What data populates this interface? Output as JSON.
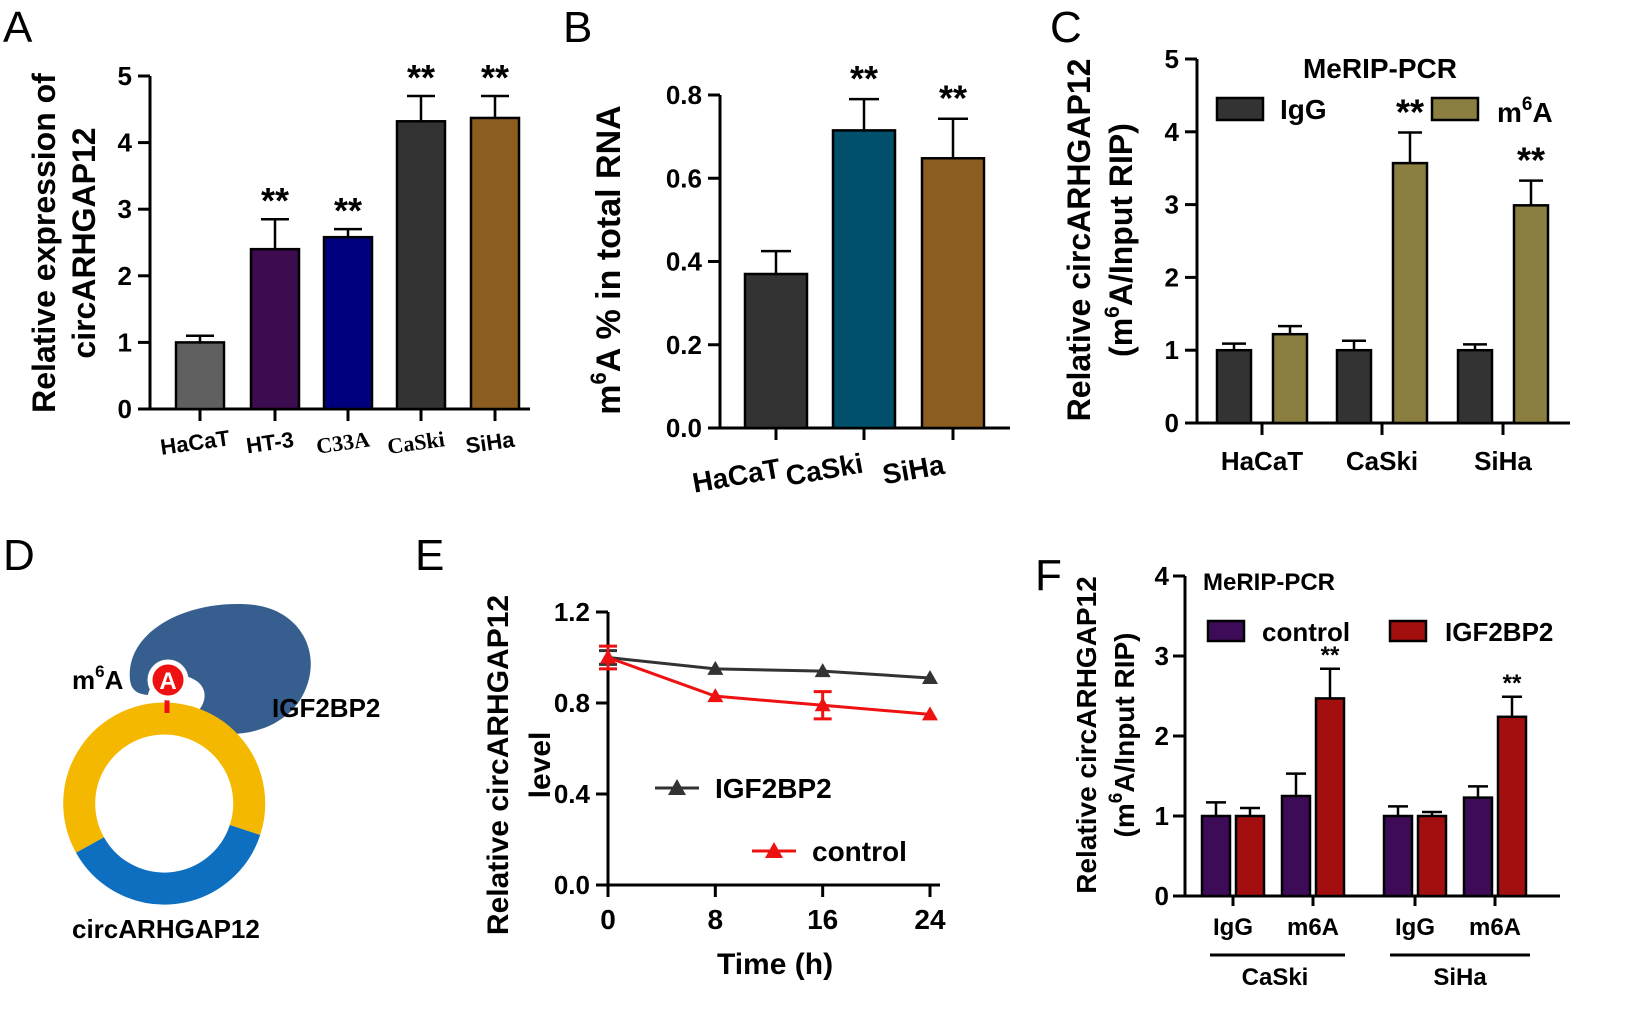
{
  "panel_labels": {
    "A": "A",
    "B": "B",
    "C": "C",
    "D": "D",
    "E": "E",
    "F": "F"
  },
  "chart_data": [
    {
      "panel": "A",
      "type": "bar",
      "ylabel": "Relative expression of circARHGAP12",
      "ylabel_lines": [
        "Relative expression of",
        "circARHGAP12"
      ],
      "ylim": [
        0,
        5
      ],
      "yticks": [
        "0",
        "1",
        "2",
        "3",
        "4",
        "5"
      ],
      "categories": [
        "HaCaT",
        "HT-3",
        "C33A",
        "CaSki",
        "SiHa"
      ],
      "values": [
        1.0,
        2.4,
        2.58,
        4.32,
        4.37
      ],
      "errors": [
        0.1,
        0.45,
        0.12,
        0.38,
        0.33
      ],
      "colors": [
        "#5f5f5f",
        "#3d0b4f",
        "#00007f",
        "#333333",
        "#8b5e1f"
      ],
      "significance": [
        "",
        "**",
        "**",
        "**",
        "**"
      ]
    },
    {
      "panel": "B",
      "type": "bar",
      "ylabel": "m6A % in total RNA",
      "ylabel_parts": {
        "base": "m",
        "sup": "6",
        "rest": "A % in total RNA"
      },
      "ylim": [
        0,
        0.8
      ],
      "yticks": [
        "0.0",
        "0.2",
        "0.4",
        "0.6",
        "0.8"
      ],
      "categories": [
        "HaCaT",
        "CaSki",
        "SiHa"
      ],
      "values": [
        0.37,
        0.715,
        0.648
      ],
      "errors": [
        0.055,
        0.075,
        0.095
      ],
      "colors": [
        "#333333",
        "#00506b",
        "#8b5e1f"
      ],
      "significance": [
        "",
        "**",
        "**"
      ]
    },
    {
      "panel": "C",
      "type": "bar",
      "title": "MeRIP-PCR",
      "ylabel_lines": [
        "Relative circARHGAP12",
        "(m6A/Input RIP)"
      ],
      "ylabel2_parts": {
        "pre": "(m",
        "sup": "6",
        "post": "A/Input RIP)"
      },
      "ylim": [
        0,
        5
      ],
      "yticks": [
        "0",
        "1",
        "2",
        "3",
        "4",
        "5"
      ],
      "categories": [
        "HaCaT",
        "CaSki",
        "SiHa"
      ],
      "series": [
        {
          "name": "IgG",
          "color": "#333333",
          "values": [
            1.0,
            1.0,
            1.0
          ],
          "errors": [
            0.09,
            0.13,
            0.08
          ],
          "significance": [
            "",
            "",
            ""
          ]
        },
        {
          "name": "m6A",
          "legend_base": "m",
          "legend_sup": "6",
          "legend_rest": "A",
          "color": "#8a7f40",
          "values": [
            1.22,
            3.57,
            2.99
          ],
          "errors": [
            0.11,
            0.42,
            0.34
          ],
          "significance": [
            "",
            "**",
            "**"
          ]
        }
      ]
    },
    {
      "panel": "E",
      "type": "line",
      "xlabel": "Time (h)",
      "ylabel_lines": [
        "Relative circARHGAP12",
        "level"
      ],
      "xlim": [
        0,
        24
      ],
      "ylim": [
        0,
        1.2
      ],
      "xticks": [
        "0",
        "8",
        "16",
        "24"
      ],
      "yticks": [
        "0.0",
        "0.4",
        "0.8",
        "1.2"
      ],
      "x": [
        0,
        8,
        16,
        24
      ],
      "series": [
        {
          "name": "IGF2BP2",
          "color": "#333333",
          "values": [
            1.0,
            0.95,
            0.94,
            0.91
          ],
          "errors": [
            0.03,
            0.0,
            0.0,
            0.0
          ]
        },
        {
          "name": "control",
          "color": "#ee1111",
          "values": [
            1.0,
            0.83,
            0.79,
            0.75
          ],
          "errors": [
            0.05,
            0.0,
            0.06,
            0.0
          ]
        }
      ]
    },
    {
      "panel": "F",
      "type": "bar",
      "title": "MeRIP-PCR",
      "ylabel_lines": [
        "Relative circARHGAP12",
        "(m6A/Input RIP)"
      ],
      "ylabel2_parts": {
        "pre": "(m",
        "sup": "6",
        "post": "A/Input RIP)"
      },
      "ylim": [
        0,
        4
      ],
      "yticks": [
        "0",
        "1",
        "2",
        "3",
        "4"
      ],
      "categories": [
        "IgG",
        "m6A",
        "IgG",
        "m6A"
      ],
      "groups": [
        "CaSki",
        "SiHa"
      ],
      "series": [
        {
          "name": "control",
          "color": "#3d0b57",
          "values": [
            1.0,
            1.25,
            1.0,
            1.23
          ],
          "errors": [
            0.17,
            0.28,
            0.12,
            0.14
          ],
          "significance": [
            "",
            "",
            "",
            ""
          ]
        },
        {
          "name": "IGF2BP2",
          "color": "#a30f0f",
          "values": [
            1.0,
            2.47,
            1.0,
            2.24
          ],
          "errors": [
            0.1,
            0.37,
            0.05,
            0.25
          ],
          "significance": [
            "",
            "**",
            "",
            "**"
          ]
        }
      ]
    }
  ],
  "diagram_D": {
    "m6a_label": {
      "base": "m",
      "sup": "6",
      "rest": "A"
    },
    "adenosine_label": "A",
    "protein_label": "IGF2BP2",
    "circ_label": "circARHGAP12",
    "colors": {
      "protein": "#365f8f",
      "ring_top": "#f5b800",
      "ring_bottom": "#0e6fc0",
      "mark": "#ee1111"
    }
  }
}
